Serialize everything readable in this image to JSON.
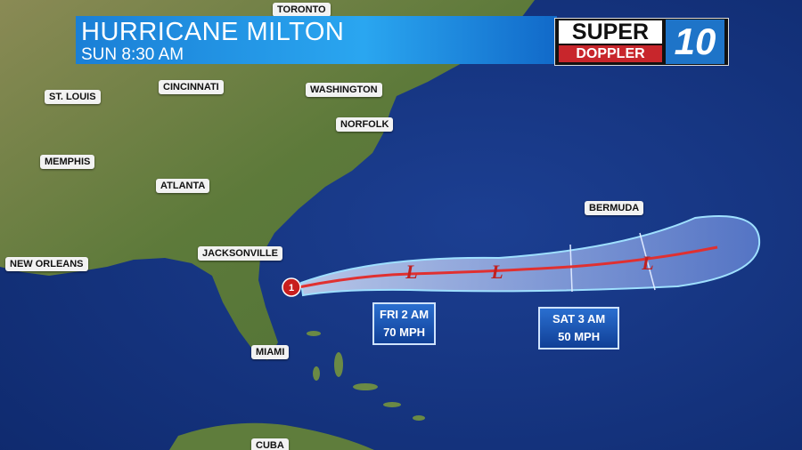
{
  "header": {
    "title": "HURRICANE MILTON",
    "subtitle": "SUN 8:30 AM"
  },
  "logo": {
    "line1": "SUPER",
    "line2": "DOPPLER",
    "channel": "10"
  },
  "cities": [
    "TORONTO",
    "ST. LOUIS",
    "CINCINNATI",
    "WASHINGTON",
    "NORFOLK",
    "MEMPHIS",
    "ATLANTA",
    "BERMUDA",
    "JACKSONVILLE",
    "NEW ORLEANS",
    "MIAMI",
    "CUBA"
  ],
  "storm": {
    "category": "1",
    "lows": [
      "L",
      "L",
      "L"
    ]
  },
  "forecast_boxes": [
    {
      "time": "FRI 2 AM",
      "wind": "70 MPH"
    },
    {
      "time": "SAT 3 AM",
      "wind": "50 MPH"
    }
  ]
}
